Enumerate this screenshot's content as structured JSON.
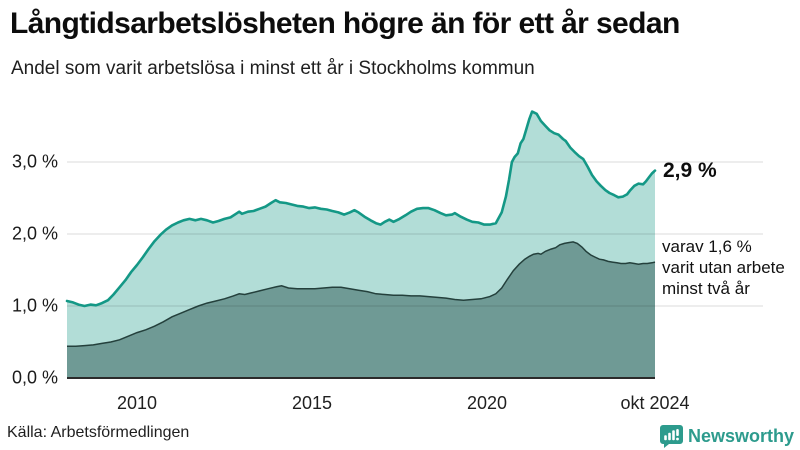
{
  "header": {
    "title": "Långtidsarbetslösheten högre än för ett år sedan",
    "subtitle": "Andel som varit arbetslösa i minst ett år i Stockholms kommun"
  },
  "chart_data": {
    "type": "area",
    "title": "Långtidsarbetslösheten högre än för ett år sedan",
    "subtitle": "Andel som varit arbetslösa i minst ett år i Stockholms kommun",
    "unit": "%",
    "x_range": [
      2008.0,
      2024.8
    ],
    "ylim": [
      0,
      3.7
    ],
    "grid": true,
    "legend_position": "right-annotations",
    "y_axis": {
      "ticks": [
        {
          "value": 3,
          "label": "3,0 %"
        },
        {
          "value": 2,
          "label": "2,0 %"
        },
        {
          "value": 1,
          "label": "1,0 %"
        },
        {
          "value": 0,
          "label": "0,0 %"
        }
      ]
    },
    "x_axis": {
      "ticks": [
        {
          "value": 2010,
          "label": "2010"
        },
        {
          "value": 2015,
          "label": "2015"
        },
        {
          "value": 2020,
          "label": "2020"
        },
        {
          "value": 2024.8,
          "label": "okt 2024"
        }
      ]
    },
    "series": [
      {
        "name": "Arbetslösa minst ett år",
        "end_value": 2.9,
        "end_label": "2,9 %",
        "line_color": "#149886",
        "fill_color": "rgba(20,152,134,0.33)",
        "points": [
          [
            2008.0,
            1.07
          ],
          [
            2008.17,
            1.05
          ],
          [
            2008.33,
            1.02
          ],
          [
            2008.5,
            1.0
          ],
          [
            2008.67,
            1.02
          ],
          [
            2008.83,
            1.01
          ],
          [
            2009.0,
            1.04
          ],
          [
            2009.17,
            1.08
          ],
          [
            2009.33,
            1.16
          ],
          [
            2009.5,
            1.26
          ],
          [
            2009.67,
            1.36
          ],
          [
            2009.83,
            1.47
          ],
          [
            2010.0,
            1.57
          ],
          [
            2010.17,
            1.68
          ],
          [
            2010.33,
            1.79
          ],
          [
            2010.5,
            1.9
          ],
          [
            2010.67,
            1.99
          ],
          [
            2010.83,
            2.06
          ],
          [
            2011.0,
            2.12
          ],
          [
            2011.17,
            2.16
          ],
          [
            2011.33,
            2.19
          ],
          [
            2011.5,
            2.21
          ],
          [
            2011.67,
            2.19
          ],
          [
            2011.83,
            2.21
          ],
          [
            2012.0,
            2.19
          ],
          [
            2012.17,
            2.16
          ],
          [
            2012.33,
            2.18
          ],
          [
            2012.5,
            2.21
          ],
          [
            2012.67,
            2.23
          ],
          [
            2012.83,
            2.28
          ],
          [
            2012.92,
            2.31
          ],
          [
            2013.0,
            2.28
          ],
          [
            2013.17,
            2.31
          ],
          [
            2013.33,
            2.32
          ],
          [
            2013.5,
            2.35
          ],
          [
            2013.67,
            2.38
          ],
          [
            2013.83,
            2.43
          ],
          [
            2013.96,
            2.47
          ],
          [
            2014.08,
            2.44
          ],
          [
            2014.25,
            2.43
          ],
          [
            2014.42,
            2.41
          ],
          [
            2014.58,
            2.39
          ],
          [
            2014.75,
            2.38
          ],
          [
            2014.92,
            2.36
          ],
          [
            2015.08,
            2.37
          ],
          [
            2015.25,
            2.35
          ],
          [
            2015.42,
            2.34
          ],
          [
            2015.58,
            2.32
          ],
          [
            2015.75,
            2.3
          ],
          [
            2015.92,
            2.27
          ],
          [
            2016.08,
            2.3
          ],
          [
            2016.21,
            2.33
          ],
          [
            2016.33,
            2.3
          ],
          [
            2016.5,
            2.24
          ],
          [
            2016.67,
            2.19
          ],
          [
            2016.83,
            2.15
          ],
          [
            2016.96,
            2.13
          ],
          [
            2017.08,
            2.17
          ],
          [
            2017.21,
            2.2
          ],
          [
            2017.33,
            2.17
          ],
          [
            2017.5,
            2.21
          ],
          [
            2017.67,
            2.26
          ],
          [
            2017.83,
            2.31
          ],
          [
            2018.0,
            2.35
          ],
          [
            2018.17,
            2.36
          ],
          [
            2018.33,
            2.36
          ],
          [
            2018.5,
            2.33
          ],
          [
            2018.67,
            2.29
          ],
          [
            2018.83,
            2.26
          ],
          [
            2019.0,
            2.27
          ],
          [
            2019.08,
            2.29
          ],
          [
            2019.25,
            2.24
          ],
          [
            2019.42,
            2.2
          ],
          [
            2019.58,
            2.17
          ],
          [
            2019.75,
            2.16
          ],
          [
            2019.92,
            2.13
          ],
          [
            2020.08,
            2.13
          ],
          [
            2020.25,
            2.15
          ],
          [
            2020.42,
            2.3
          ],
          [
            2020.54,
            2.52
          ],
          [
            2020.63,
            2.76
          ],
          [
            2020.71,
            3.0
          ],
          [
            2020.79,
            3.07
          ],
          [
            2020.88,
            3.12
          ],
          [
            2020.96,
            3.26
          ],
          [
            2021.04,
            3.32
          ],
          [
            2021.13,
            3.47
          ],
          [
            2021.21,
            3.6
          ],
          [
            2021.29,
            3.7
          ],
          [
            2021.42,
            3.67
          ],
          [
            2021.54,
            3.57
          ],
          [
            2021.67,
            3.5
          ],
          [
            2021.79,
            3.44
          ],
          [
            2021.92,
            3.4
          ],
          [
            2022.04,
            3.38
          ],
          [
            2022.17,
            3.32
          ],
          [
            2022.25,
            3.29
          ],
          [
            2022.38,
            3.2
          ],
          [
            2022.5,
            3.14
          ],
          [
            2022.63,
            3.08
          ],
          [
            2022.75,
            3.04
          ],
          [
            2022.88,
            2.93
          ],
          [
            2023.0,
            2.82
          ],
          [
            2023.13,
            2.73
          ],
          [
            2023.25,
            2.67
          ],
          [
            2023.38,
            2.61
          ],
          [
            2023.5,
            2.57
          ],
          [
            2023.63,
            2.54
          ],
          [
            2023.75,
            2.51
          ],
          [
            2023.88,
            2.52
          ],
          [
            2024.0,
            2.55
          ],
          [
            2024.08,
            2.6
          ],
          [
            2024.21,
            2.67
          ],
          [
            2024.33,
            2.7
          ],
          [
            2024.46,
            2.69
          ],
          [
            2024.54,
            2.73
          ],
          [
            2024.63,
            2.79
          ],
          [
            2024.71,
            2.84
          ],
          [
            2024.8,
            2.88
          ]
        ]
      },
      {
        "name": "Varav utan arbete minst två år",
        "end_value": 1.6,
        "annotation_lines": [
          "varav 1,6 %",
          "varit utan arbete",
          "minst två år"
        ],
        "line_color": "#24403c",
        "fill_color": "#6f9a95",
        "points": [
          [
            2008.0,
            0.44
          ],
          [
            2008.25,
            0.44
          ],
          [
            2008.5,
            0.45
          ],
          [
            2008.75,
            0.46
          ],
          [
            2009.0,
            0.48
          ],
          [
            2009.25,
            0.5
          ],
          [
            2009.5,
            0.53
          ],
          [
            2009.75,
            0.58
          ],
          [
            2010.0,
            0.63
          ],
          [
            2010.25,
            0.67
          ],
          [
            2010.5,
            0.72
          ],
          [
            2010.75,
            0.78
          ],
          [
            2011.0,
            0.85
          ],
          [
            2011.25,
            0.9
          ],
          [
            2011.5,
            0.95
          ],
          [
            2011.75,
            1.0
          ],
          [
            2012.0,
            1.04
          ],
          [
            2012.25,
            1.07
          ],
          [
            2012.5,
            1.1
          ],
          [
            2012.75,
            1.14
          ],
          [
            2012.92,
            1.17
          ],
          [
            2013.08,
            1.16
          ],
          [
            2013.25,
            1.18
          ],
          [
            2013.5,
            1.21
          ],
          [
            2013.75,
            1.24
          ],
          [
            2014.0,
            1.27
          ],
          [
            2014.13,
            1.28
          ],
          [
            2014.33,
            1.25
          ],
          [
            2014.58,
            1.24
          ],
          [
            2014.83,
            1.24
          ],
          [
            2015.08,
            1.24
          ],
          [
            2015.33,
            1.25
          ],
          [
            2015.58,
            1.26
          ],
          [
            2015.83,
            1.26
          ],
          [
            2016.08,
            1.24
          ],
          [
            2016.33,
            1.22
          ],
          [
            2016.58,
            1.2
          ],
          [
            2016.83,
            1.17
          ],
          [
            2017.08,
            1.16
          ],
          [
            2017.33,
            1.15
          ],
          [
            2017.58,
            1.15
          ],
          [
            2017.83,
            1.14
          ],
          [
            2018.08,
            1.14
          ],
          [
            2018.33,
            1.13
          ],
          [
            2018.58,
            1.12
          ],
          [
            2018.83,
            1.11
          ],
          [
            2019.08,
            1.09
          ],
          [
            2019.33,
            1.08
          ],
          [
            2019.58,
            1.09
          ],
          [
            2019.83,
            1.1
          ],
          [
            2020.08,
            1.13
          ],
          [
            2020.25,
            1.17
          ],
          [
            2020.42,
            1.25
          ],
          [
            2020.58,
            1.37
          ],
          [
            2020.75,
            1.49
          ],
          [
            2020.92,
            1.58
          ],
          [
            2021.08,
            1.65
          ],
          [
            2021.21,
            1.69
          ],
          [
            2021.33,
            1.72
          ],
          [
            2021.46,
            1.73
          ],
          [
            2021.54,
            1.72
          ],
          [
            2021.67,
            1.76
          ],
          [
            2021.83,
            1.79
          ],
          [
            2021.96,
            1.81
          ],
          [
            2022.08,
            1.85
          ],
          [
            2022.21,
            1.87
          ],
          [
            2022.33,
            1.88
          ],
          [
            2022.46,
            1.89
          ],
          [
            2022.58,
            1.87
          ],
          [
            2022.71,
            1.82
          ],
          [
            2022.83,
            1.76
          ],
          [
            2022.96,
            1.71
          ],
          [
            2023.08,
            1.68
          ],
          [
            2023.21,
            1.65
          ],
          [
            2023.33,
            1.64
          ],
          [
            2023.46,
            1.62
          ],
          [
            2023.58,
            1.61
          ],
          [
            2023.71,
            1.6
          ],
          [
            2023.83,
            1.59
          ],
          [
            2023.96,
            1.59
          ],
          [
            2024.08,
            1.6
          ],
          [
            2024.21,
            1.59
          ],
          [
            2024.33,
            1.58
          ],
          [
            2024.46,
            1.59
          ],
          [
            2024.58,
            1.59
          ],
          [
            2024.71,
            1.6
          ],
          [
            2024.8,
            1.61
          ]
        ]
      }
    ]
  },
  "footer": {
    "source": "Källa: Arbetsförmedlingen",
    "brand": "Newsworthy"
  },
  "colors": {
    "accent": "#149886",
    "area_light": "rgba(20,152,134,0.33)",
    "area_dark": "#6f9a95",
    "brand": "#2d9b8d",
    "grid": "rgba(0,0,0,0.14)",
    "axis": "#2b2b2b"
  }
}
